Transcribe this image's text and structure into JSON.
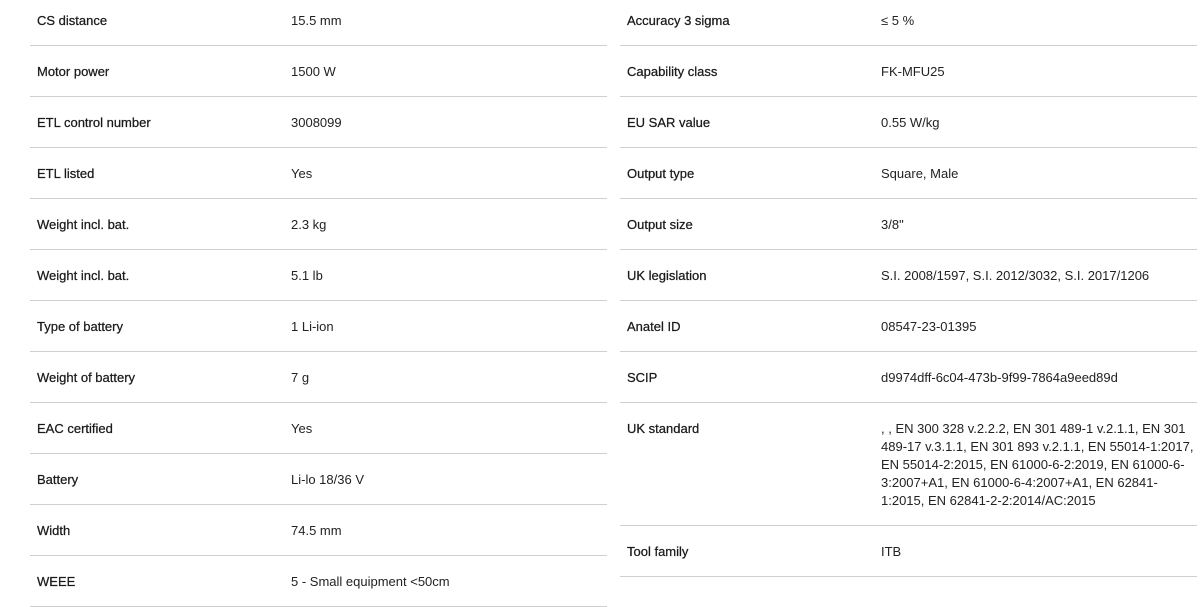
{
  "left": [
    {
      "label": "CS distance",
      "value": "15.5 mm"
    },
    {
      "label": "Motor power",
      "value": "1500 W"
    },
    {
      "label": "ETL control number",
      "value": "3008099"
    },
    {
      "label": "ETL listed",
      "value": "Yes"
    },
    {
      "label": "Weight incl. bat.",
      "value": "2.3 kg"
    },
    {
      "label": "Weight incl. bat.",
      "value": "5.1 lb"
    },
    {
      "label": "Type of battery",
      "value": "1 Li-ion"
    },
    {
      "label": "Weight of battery",
      "value": "7 g"
    },
    {
      "label": "EAC certified",
      "value": "Yes"
    },
    {
      "label": "Battery",
      "value": "Li-lo 18/36 V"
    },
    {
      "label": "Width",
      "value": "74.5 mm"
    },
    {
      "label": "WEEE",
      "value": "5 - Small equipment <50cm"
    }
  ],
  "right": [
    {
      "label": "Accuracy 3 sigma",
      "value": "≤ 5 %"
    },
    {
      "label": "Capability class",
      "value": "FK-MFU25"
    },
    {
      "label": "EU SAR value",
      "value": "0.55 W/kg"
    },
    {
      "label": "Output type",
      "value": "Square, Male"
    },
    {
      "label": "Output size",
      "value": "3/8\""
    },
    {
      "label": "UK legislation",
      "value": "S.I. 2008/1597, S.I. 2012/3032, S.I. 2017/1206"
    },
    {
      "label": "Anatel ID",
      "value": "08547-23-01395"
    },
    {
      "label": "SCIP",
      "value": "d9974dff-6c04-473b-9f99-7864a9eed89d"
    },
    {
      "label": "UK standard",
      "value": ", , EN 300 328 v.2.2.2, EN 301 489-1 v.2.1.1, EN 301 489-17 v.3.1.1, EN 301 893 v.2.1.1, EN 55014-1:2017, EN 55014-2:2015, EN 61000-6-2:2019, EN 61000-6-3:2007+A1, EN 61000-6-4:2007+A1, EN 62841-1:2015, EN 62841-2-2:2014/AC:2015"
    },
    {
      "label": "Tool family",
      "value": "ITB"
    }
  ]
}
